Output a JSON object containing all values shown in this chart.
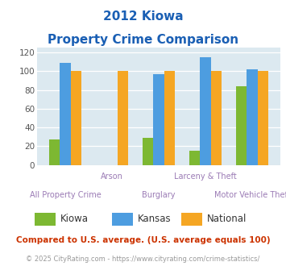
{
  "title_line1": "2012 Kiowa",
  "title_line2": "Property Crime Comparison",
  "cat_labels_row1": [
    "",
    "Arson",
    "",
    "Larceny & Theft",
    ""
  ],
  "cat_labels_row2": [
    "All Property Crime",
    "",
    "Burglary",
    "",
    "Motor Vehicle Theft"
  ],
  "kiowa": [
    27,
    0,
    29,
    15,
    84
  ],
  "kansas": [
    109,
    0,
    97,
    115,
    102
  ],
  "national": [
    100,
    100,
    100,
    100,
    100
  ],
  "color_kiowa": "#7db832",
  "color_kansas": "#4d9de0",
  "color_national": "#f5a623",
  "ylim": [
    0,
    125
  ],
  "yticks": [
    0,
    20,
    40,
    60,
    80,
    100,
    120
  ],
  "bg_color": "#dce9f0",
  "title_color": "#1a5fb4",
  "xlabel_color": "#9b7bb5",
  "footer_note": "Compared to U.S. average. (U.S. average equals 100)",
  "footer_credit": "© 2025 CityRating.com - https://www.cityrating.com/crime-statistics/",
  "legend_labels": [
    "Kiowa",
    "Kansas",
    "National"
  ],
  "footer_note_color": "#cc3300",
  "footer_credit_color": "#999999"
}
